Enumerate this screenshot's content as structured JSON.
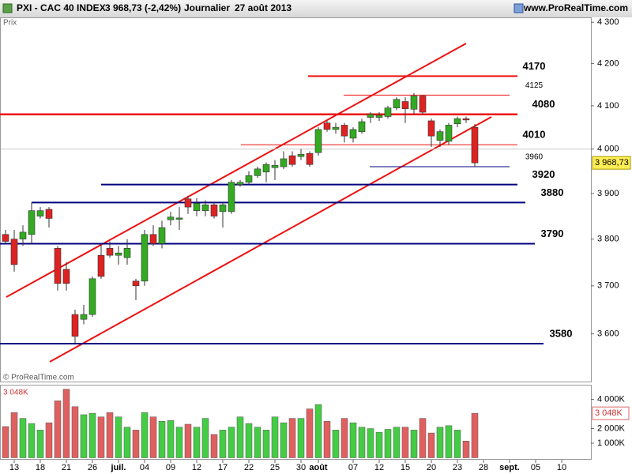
{
  "header": {
    "symbol": "PXI - CAC 40 INDEX",
    "quote": "3 968,73 (-2,42%)",
    "period": "Journalier",
    "date": "27 août 2013",
    "site": "www.ProRealTime.com"
  },
  "chart_data": {
    "type": "candlestick",
    "price_label": "Prix",
    "copyright": "© ProRealTime.com",
    "volume_label": "3 048K",
    "categories": [
      null,
      "13",
      null,
      null,
      "18",
      null,
      null,
      "21",
      null,
      null,
      "26",
      null,
      null,
      "juil.",
      null,
      null,
      "04",
      null,
      null,
      "09",
      null,
      null,
      "12",
      null,
      null,
      "17",
      null,
      null,
      "22",
      null,
      null,
      "25",
      null,
      null,
      "30",
      null,
      "août",
      null,
      null,
      null,
      "07",
      null,
      null,
      "12",
      null,
      null,
      "15",
      null,
      null,
      "20",
      null,
      null,
      "23",
      null,
      null,
      "28",
      null,
      null,
      "sept.",
      null,
      null,
      "05",
      null,
      null,
      "10"
    ],
    "open": [
      3810,
      3800,
      3800,
      3810,
      3850,
      3865,
      3780,
      3735,
      3640,
      3630,
      3640,
      3765,
      3780,
      3765,
      3760,
      3710,
      3710,
      3810,
      3790,
      3842,
      3843,
      3888,
      3862,
      3862,
      3875,
      3860,
      3860,
      3920,
      3925,
      3940,
      3948,
      3958,
      3960,
      3985,
      3983,
      3990,
      3992,
      4060,
      4045,
      4055,
      4025,
      4040,
      4073,
      4073,
      4075,
      4095,
      4110,
      4092,
      4123,
      4065,
      4020,
      4018,
      4058,
      4070,
      4050,
      null,
      null,
      null,
      null,
      null,
      null,
      null,
      null,
      null,
      null
    ],
    "high": [
      3820,
      3820,
      3830,
      3880,
      3870,
      3870,
      3785,
      3750,
      3650,
      3660,
      3720,
      3790,
      3795,
      3785,
      3800,
      3715,
      3820,
      3830,
      3840,
      3860,
      3870,
      3895,
      3890,
      3885,
      3880,
      3880,
      3930,
      3930,
      3950,
      3960,
      3970,
      3975,
      3995,
      3995,
      4000,
      3995,
      4050,
      4065,
      4060,
      4060,
      4050,
      4070,
      4085,
      4085,
      4100,
      4120,
      4120,
      4130,
      4125,
      4070,
      4045,
      4060,
      4075,
      4075,
      4058,
      null,
      null,
      null,
      null,
      null,
      null,
      null,
      null,
      null,
      null
    ],
    "low": [
      3790,
      3730,
      3785,
      3790,
      3845,
      3825,
      3690,
      3690,
      3580,
      3620,
      3635,
      3715,
      3760,
      3745,
      3745,
      3670,
      3700,
      3785,
      3780,
      3830,
      3820,
      3855,
      3850,
      3850,
      3845,
      3825,
      3855,
      3915,
      3920,
      3935,
      3925,
      3930,
      3955,
      3960,
      3975,
      3960,
      3985,
      4040,
      4035,
      4015,
      4015,
      4035,
      4060,
      4065,
      4070,
      4090,
      4060,
      4080,
      4080,
      4005,
      4005,
      4010,
      4050,
      4060,
      3960,
      null,
      null,
      null,
      null,
      null,
      null,
      null,
      null,
      null,
      null
    ],
    "close": [
      3795,
      3745,
      3815,
      3862,
      3862,
      3845,
      3705,
      3705,
      3595,
      3640,
      3715,
      3720,
      3765,
      3770,
      3780,
      3700,
      3810,
      3790,
      3825,
      3848,
      3846,
      3870,
      3878,
      3875,
      3850,
      3875,
      3925,
      3925,
      3940,
      3955,
      3965,
      3963,
      3978,
      3965,
      3988,
      3965,
      4045,
      4045,
      4050,
      4030,
      4045,
      4063,
      4080,
      4078,
      4095,
      4115,
      4093,
      4123,
      4085,
      4030,
      4040,
      4055,
      4070,
      4067,
      3968.73,
      null,
      null,
      null,
      null,
      null,
      null,
      null,
      null,
      null,
      null
    ],
    "close_label": "3 968,73",
    "volume": [
      2140000,
      3100000,
      2700000,
      2350000,
      1900000,
      2400000,
      3900000,
      4700000,
      3500000,
      2950000,
      3050000,
      2800000,
      3100000,
      2800000,
      2100000,
      1900000,
      3100000,
      2800000,
      2500000,
      2550000,
      2100000,
      2300000,
      2100000,
      2700000,
      1600000,
      1900000,
      2100000,
      2800000,
      2350000,
      2100000,
      1900000,
      2800000,
      2400000,
      2700000,
      2700000,
      3350000,
      3650000,
      2500000,
      1900000,
      2700000,
      2400000,
      2100000,
      2000000,
      1750000,
      1950000,
      2100000,
      2100000,
      1900000,
      2700000,
      1700000,
      2100000,
      2200000,
      1900000,
      1150000,
      3048000,
      null,
      null,
      null,
      null,
      null,
      null,
      null,
      null,
      null,
      null
    ],
    "ylim": [
      3505,
      4312
    ],
    "log_scale": true,
    "yticks": [
      {
        "value": 3600,
        "label": "3 600"
      },
      {
        "value": 3700,
        "label": "3 700"
      },
      {
        "value": 3800,
        "label": "3 800"
      },
      {
        "value": 3900,
        "label": "3 900"
      },
      {
        "value": 4000,
        "label": "4 000"
      },
      {
        "value": 4100,
        "label": "4 100"
      },
      {
        "value": 4200,
        "label": "4 200"
      },
      {
        "value": 4300,
        "label": "4 300"
      }
    ],
    "vlim": [
      0,
      4950000
    ],
    "vticks": [
      {
        "value": 1000000,
        "label": "1 000K"
      },
      {
        "value": 2000000,
        "label": "2 000K"
      },
      {
        "value": 4000000,
        "label": "4 000K"
      }
    ],
    "up_color": "#33aa22",
    "down_color": "#dd2222",
    "levels": [
      {
        "value": 4170,
        "color": "#ee1111"
      },
      {
        "value": 4125,
        "color": "#ee1111"
      },
      {
        "value": 4080,
        "color": "#ee1111"
      },
      {
        "value": 4010,
        "color": "#ee1111"
      },
      {
        "value": 3960,
        "color": "#000080"
      },
      {
        "value": 3920,
        "color": "#000080"
      },
      {
        "value": 3880,
        "color": "#000080"
      },
      {
        "value": 3790,
        "color": "#000080"
      },
      {
        "value": 3580,
        "color": "#000080"
      }
    ]
  }
}
